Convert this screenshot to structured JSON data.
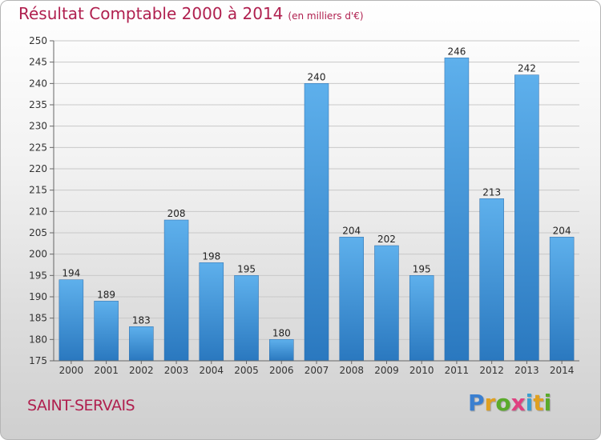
{
  "header": {
    "title": "Résultat Comptable 2000 à 2014",
    "unit": "(en milliers d'€)"
  },
  "footer": {
    "city": "SAINT-SERVAIS"
  },
  "logo": {
    "letters": [
      {
        "char": "P",
        "color": "#3a7fd0"
      },
      {
        "char": "r",
        "color": "#e0a020"
      },
      {
        "char": "o",
        "color": "#5aaa2a"
      },
      {
        "char": "x",
        "color": "#e04080"
      },
      {
        "char": "i",
        "color": "#3a9fd0"
      },
      {
        "char": "t",
        "color": "#e0a020"
      },
      {
        "char": "i",
        "color": "#5aaa2a"
      }
    ]
  },
  "chart_data": {
    "type": "bar",
    "title": "Résultat Comptable 2000 à 2014",
    "categories": [
      "2000",
      "2001",
      "2002",
      "2003",
      "2004",
      "2005",
      "2006",
      "2007",
      "2008",
      "2009",
      "2010",
      "2011",
      "2012",
      "2013",
      "2014"
    ],
    "values": [
      194,
      189,
      183,
      208,
      198,
      195,
      180,
      240,
      204,
      202,
      195,
      246,
      213,
      242,
      204
    ],
    "ylim": [
      175,
      250
    ],
    "yticks": [
      175,
      180,
      185,
      190,
      195,
      200,
      205,
      210,
      215,
      220,
      225,
      230,
      235,
      240,
      245,
      250
    ],
    "grid": true,
    "bar_color_top": "#5eb0ec",
    "bar_color_bottom": "#2a78bf"
  }
}
